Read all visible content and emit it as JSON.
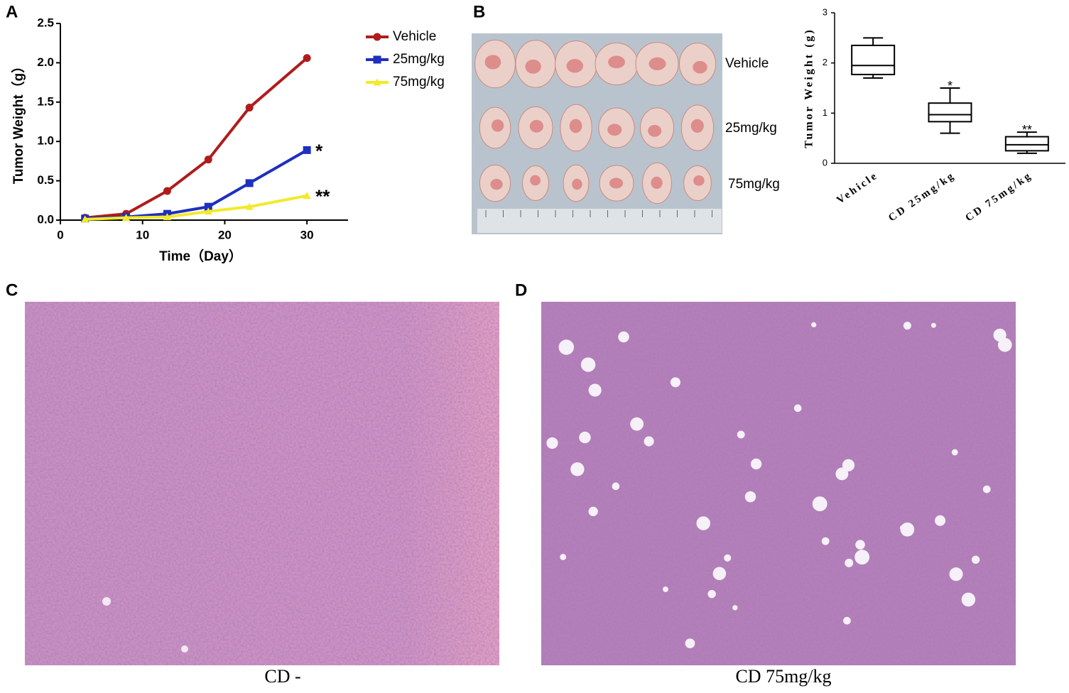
{
  "panels": {
    "letters": [
      "A",
      "B",
      "C",
      "D"
    ],
    "photo_b_rows": [
      "Vehicle",
      "25mg/kg",
      "75mg/kg"
    ],
    "captions": [
      "CD -",
      "CD 75mg/kg"
    ]
  },
  "chart_data": [
    {
      "type": "line",
      "x": [
        3,
        8,
        13,
        18,
        23,
        30
      ],
      "series": [
        {
          "name": "Vehicle",
          "color": "#b01c1c",
          "marker": "circle",
          "values": [
            0.03,
            0.08,
            0.37,
            0.77,
            1.43,
            2.06
          ]
        },
        {
          "name": "25mg/kg",
          "color": "#1f2fbf",
          "marker": "square",
          "values": [
            0.02,
            0.04,
            0.08,
            0.17,
            0.47,
            0.89
          ]
        },
        {
          "name": "75mg/kg",
          "color": "#f2ea2a",
          "marker": "triangle",
          "values": [
            0.01,
            0.03,
            0.04,
            0.11,
            0.17,
            0.31
          ]
        }
      ],
      "annotations": [
        "*",
        "**"
      ],
      "xlabel": "Time（Day）",
      "ylabel": "Tumor Weight（g）",
      "xlim": [
        0,
        35
      ],
      "xticks": [
        0,
        10,
        20,
        30
      ],
      "ylim": [
        0,
        2.5
      ],
      "yticks": [
        {
          "value": 0,
          "label": "0.0"
        },
        0.5,
        {
          "value": 1,
          "label": "1.0"
        },
        1.5,
        {
          "value": 2,
          "label": "2.0"
        },
        2.5
      ]
    },
    {
      "type": "box",
      "categories": [
        "Vehicle",
        "CD 25mg/kg",
        "CD 75mg/kg"
      ],
      "boxes": [
        {
          "min": 1.7,
          "q1": 1.77,
          "median": 1.95,
          "q3": 2.35,
          "max": 2.5
        },
        {
          "min": 0.6,
          "q1": 0.83,
          "median": 0.97,
          "q3": 1.2,
          "max": 1.5
        },
        {
          "min": 0.2,
          "q1": 0.25,
          "median": 0.37,
          "q3": 0.53,
          "max": 0.62
        }
      ],
      "annotations": [
        "*",
        "**"
      ],
      "ylabel": "Tumor Weight (g)",
      "ylim": [
        0,
        3
      ],
      "yticks": [
        0,
        1,
        2,
        3
      ]
    }
  ]
}
